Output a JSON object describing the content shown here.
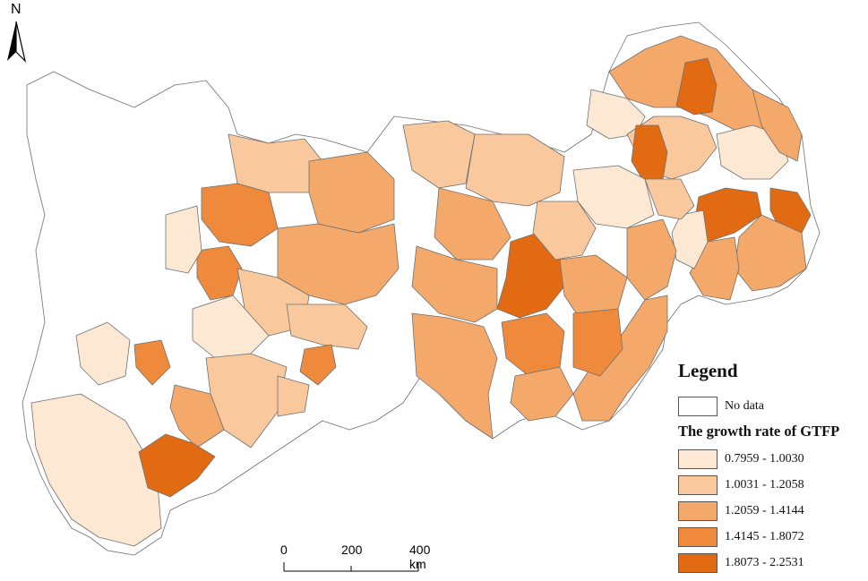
{
  "legend": {
    "title": "Legend",
    "no_data_label": "No data",
    "subtitle": "The growth rate of GTFP",
    "classes": [
      {
        "label": "0.7959 - 1.0030",
        "color": "#fde9d3"
      },
      {
        "label": "1.0031 - 1.2058",
        "color": "#f9c99d"
      },
      {
        "label": "1.2059 - 1.4144",
        "color": "#f4a96b"
      },
      {
        "label": "1.4145 - 1.8072",
        "color": "#ef8a3c"
      },
      {
        "label": "1.8073 - 2.2531",
        "color": "#e26a12"
      }
    ]
  },
  "north_arrow": {
    "label": "N"
  },
  "scale_bar": {
    "ticks": [
      "0",
      "200",
      "400 km"
    ]
  },
  "colors": {
    "no_data": "#ffffff",
    "boundary": "#6f6f6f"
  }
}
